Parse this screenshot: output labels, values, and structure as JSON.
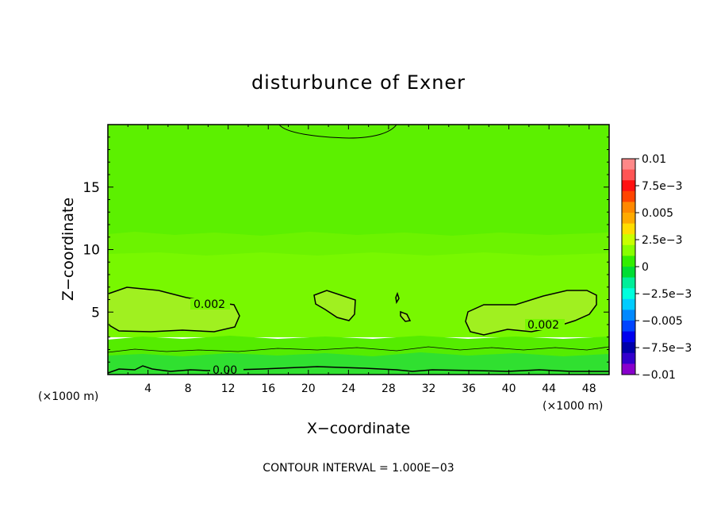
{
  "chart_data": {
    "type": "heatmap",
    "title": "disturbunce of Exner",
    "xlabel": "X−coordinate",
    "ylabel": "Z−coordinate",
    "x_unit": "(×1000 m)",
    "x_unit_right": "(×1000 m)",
    "footer": "CONTOUR INTERVAL = 1.000E−03",
    "xlim": [
      0,
      50
    ],
    "ylim": [
      0,
      20
    ],
    "x_ticks": [
      4,
      8,
      12,
      16,
      20,
      24,
      28,
      32,
      36,
      40,
      44,
      48
    ],
    "x_tick_labels": [
      "4",
      "8",
      "12",
      "16",
      "20",
      "24",
      "28",
      "32",
      "36",
      "40",
      "44",
      "48"
    ],
    "y_ticks": [
      5,
      10,
      15
    ],
    "y_tick_labels": [
      "5",
      "10",
      "15"
    ],
    "contour_interval": 0.001,
    "contour_labels": [
      {
        "text": "0.002",
        "x": 9.7,
        "z": 5.6
      },
      {
        "text": "0.002",
        "x": 44.0,
        "z": 3.9
      },
      {
        "text": "0.00",
        "x": 11.5,
        "z": 0.4
      }
    ],
    "colorbar": {
      "levels": [
        0.01,
        0.0075,
        0.005,
        0.0025,
        0,
        -0.0025,
        -0.005,
        -0.0075,
        -0.01
      ],
      "labels": [
        "0.01",
        "7.5e−3",
        "0.005",
        "2.5e−3",
        "0",
        "−2.5e−3",
        "−0.005",
        "−7.5e−3",
        "−0.01"
      ],
      "colors": [
        "#ff8888",
        "#ff5555",
        "#ff1111",
        "#ff4400",
        "#ff8800",
        "#ffaa00",
        "#ffdd00",
        "#c8ff00",
        "#88ff00",
        "#33ee00",
        "#00dd33",
        "#00ee99",
        "#00ffdd",
        "#00ccff",
        "#0088ff",
        "#0044ff",
        "#0000ee",
        "#0000aa",
        "#3300cc",
        "#8800cc"
      ]
    },
    "field_colors": {
      "top": "#5cf000",
      "upper": "#6cf300",
      "middle": "#78f800",
      "blobs": "#a0f020",
      "near_surface": "#55ec00",
      "surface": "#30e030"
    }
  }
}
